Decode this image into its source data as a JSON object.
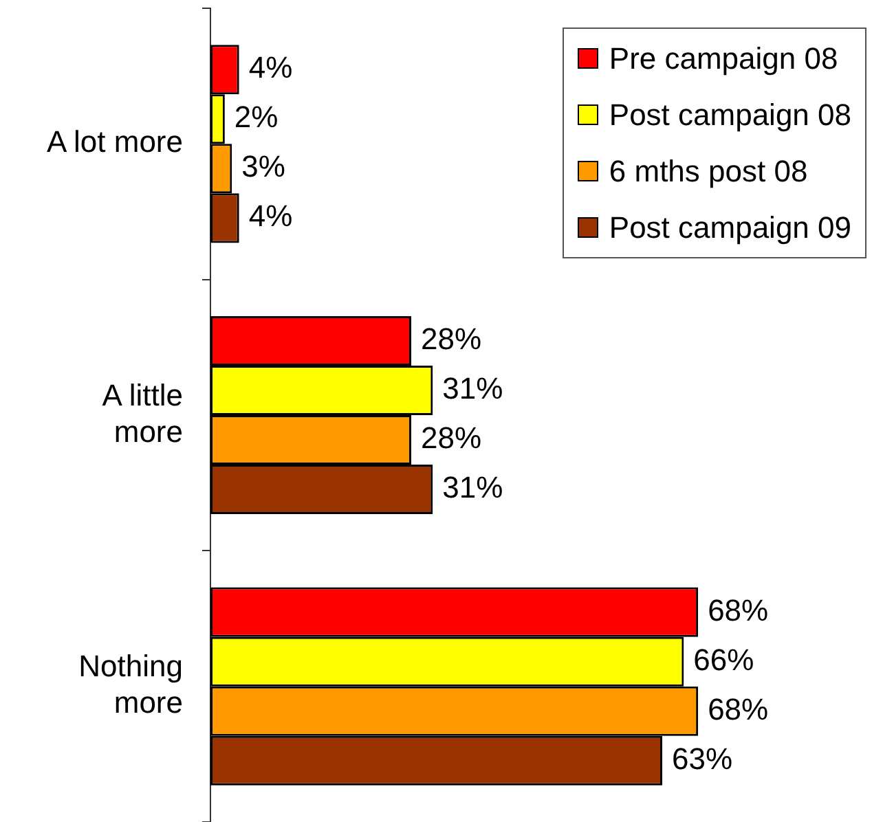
{
  "chart_data": {
    "type": "bar",
    "orientation": "horizontal",
    "categories": [
      "A lot more",
      "A little more",
      "Nothing more"
    ],
    "series": [
      {
        "name": "Pre campaign 08",
        "color": "#ff0000",
        "values": [
          4,
          28,
          68
        ],
        "value_labels": [
          "4%",
          "28%",
          "68%"
        ]
      },
      {
        "name": "Post campaign 08",
        "color": "#ffff00",
        "values": [
          2,
          31,
          66
        ],
        "value_labels": [
          "2%",
          "31%",
          "66%"
        ]
      },
      {
        "name": "6 mths post 08",
        "color": "#ff9900",
        "values": [
          3,
          28,
          68
        ],
        "value_labels": [
          "3%",
          "28%",
          "68%"
        ]
      },
      {
        "name": "Post campaign 09",
        "color": "#993300",
        "values": [
          4,
          31,
          63
        ],
        "value_labels": [
          "4%",
          "31%",
          "63%"
        ]
      }
    ],
    "legend": "top right"
  }
}
